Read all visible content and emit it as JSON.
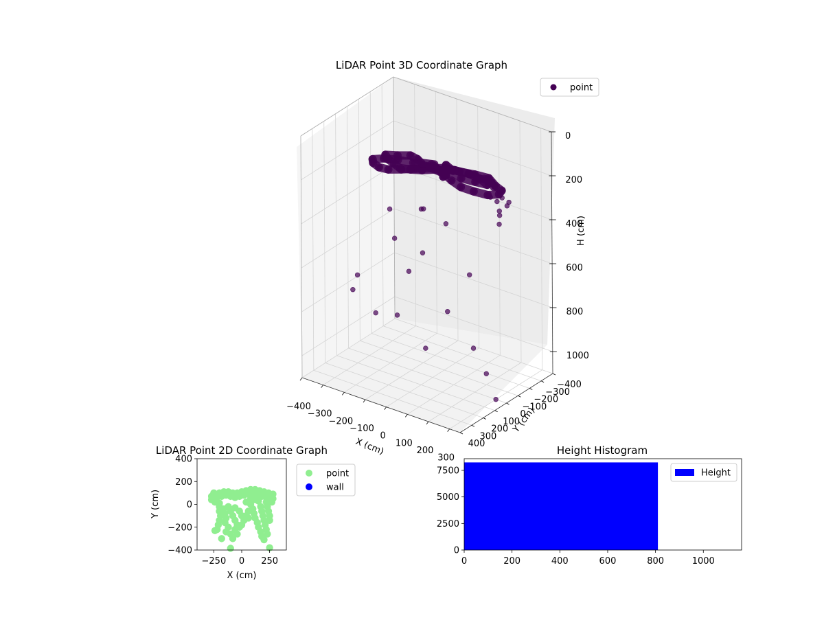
{
  "chart_data": [
    {
      "id": "lidar-3d",
      "type": "scatter",
      "title": "LiDAR Point 3D Coordinate Graph",
      "xlabel": "X (cm)",
      "ylabel": "Y (cm)",
      "zlabel": "H (cm)",
      "xlim": [
        -400,
        350
      ],
      "ylim": [
        -400,
        400
      ],
      "zlim": [
        0,
        1100
      ],
      "z_inverted": true,
      "grid": true,
      "x_ticks": [
        -400,
        -300,
        -200,
        -100,
        0,
        100,
        200,
        300
      ],
      "y_ticks": [
        -400,
        -300,
        -200,
        -100,
        0,
        100,
        200,
        300,
        400
      ],
      "z_ticks": [
        0,
        200,
        400,
        600,
        800,
        1000
      ],
      "x_tick_labels": [
        "−400",
        "−300",
        "−200",
        "−100",
        "0",
        "100",
        "200",
        "300"
      ],
      "y_tick_labels": [
        "−400",
        "−300",
        "−200",
        "−100",
        "0",
        "100",
        "200",
        "300",
        "400"
      ],
      "z_tick_labels": [
        "0",
        "200",
        "400",
        "600",
        "800",
        "1000"
      ],
      "legend": {
        "position": "top-right",
        "entries": [
          {
            "label": "point",
            "color": "#440154"
          }
        ]
      },
      "series": [
        {
          "name": "point",
          "color": "#440154",
          "points": [
            {
              "x": 0,
              "y": 0,
              "z": 130
            },
            {
              "x": 50,
              "y": 40,
              "z": 120
            },
            {
              "x": 100,
              "y": 80,
              "z": 110
            },
            {
              "x": 150,
              "y": 100,
              "z": 120
            },
            {
              "x": 200,
              "y": 110,
              "z": 130
            },
            {
              "x": 250,
              "y": 90,
              "z": 140
            },
            {
              "x": 300,
              "y": 60,
              "z": 150
            },
            {
              "x": 320,
              "y": 0,
              "z": 160
            },
            {
              "x": 300,
              "y": -60,
              "z": 170
            },
            {
              "x": 250,
              "y": -100,
              "z": 180
            },
            {
              "x": 200,
              "y": -130,
              "z": 170
            },
            {
              "x": 150,
              "y": -100,
              "z": 160
            },
            {
              "x": 100,
              "y": -60,
              "z": 150
            },
            {
              "x": 50,
              "y": -30,
              "z": 140
            },
            {
              "x": -50,
              "y": 50,
              "z": 150
            },
            {
              "x": -100,
              "y": 80,
              "z": 160
            },
            {
              "x": -150,
              "y": 100,
              "z": 170
            },
            {
              "x": -200,
              "y": 90,
              "z": 180
            },
            {
              "x": -250,
              "y": 50,
              "z": 190
            },
            {
              "x": -280,
              "y": 0,
              "z": 200
            },
            {
              "x": -260,
              "y": -60,
              "z": 210
            },
            {
              "x": -220,
              "y": -110,
              "z": 220
            },
            {
              "x": -170,
              "y": -150,
              "z": 230
            },
            {
              "x": -120,
              "y": -180,
              "z": 240
            },
            {
              "x": -60,
              "y": -190,
              "z": 250
            },
            {
              "x": -20,
              "y": -160,
              "z": 240
            },
            {
              "x": 0,
              "y": -100,
              "z": 220
            },
            {
              "x": 80,
              "y": 20,
              "z": 100
            },
            {
              "x": 130,
              "y": 50,
              "z": 100
            },
            {
              "x": 180,
              "y": 70,
              "z": 110
            },
            {
              "x": 230,
              "y": 40,
              "z": 120
            },
            {
              "x": 270,
              "y": 10,
              "z": 130
            },
            {
              "x": 210,
              "y": -40,
              "z": 140
            },
            {
              "x": 160,
              "y": -30,
              "z": 130
            },
            {
              "x": 110,
              "y": 0,
              "z": 120
            },
            {
              "x": 60,
              "y": 70,
              "z": 110
            },
            {
              "x": 10,
              "y": 100,
              "z": 120
            },
            {
              "x": -40,
              "y": 110,
              "z": 130
            },
            {
              "x": -90,
              "y": 110,
              "z": 140
            },
            {
              "x": -140,
              "y": 70,
              "z": 150
            },
            {
              "x": -190,
              "y": 30,
              "z": 160
            },
            {
              "x": -230,
              "y": -20,
              "z": 170
            },
            {
              "x": -200,
              "y": -70,
              "z": 180
            },
            {
              "x": -150,
              "y": -90,
              "z": 170
            },
            {
              "x": -100,
              "y": -60,
              "z": 160
            },
            {
              "x": -60,
              "y": -20,
              "z": 150
            },
            {
              "x": 30,
              "y": 30,
              "z": 110
            },
            {
              "x": 280,
              "y": -30,
              "z": 150
            },
            {
              "x": 240,
              "y": -80,
              "z": 160
            },
            {
              "x": 190,
              "y": -110,
              "z": 170
            },
            {
              "x": 200,
              "y": -200,
              "z": 300
            },
            {
              "x": 200,
              "y": -220,
              "z": 350
            },
            {
              "x": 210,
              "y": -200,
              "z": 400
            },
            {
              "x": 220,
              "y": -250,
              "z": 330
            },
            {
              "x": 180,
              "y": -180,
              "z": 280
            },
            {
              "x": 240,
              "y": -230,
              "z": 300
            },
            {
              "x": 190,
              "y": -240,
              "z": 380
            },
            {
              "x": 230,
              "y": -190,
              "z": 270
            },
            {
              "x": -200,
              "y": 0,
              "z": 400
            },
            {
              "x": -150,
              "y": 50,
              "z": 500
            },
            {
              "x": -100,
              "y": -100,
              "z": 600
            },
            {
              "x": -300,
              "y": 100,
              "z": 700
            },
            {
              "x": -350,
              "y": 50,
              "z": 800
            },
            {
              "x": 100,
              "y": 50,
              "z": 750
            },
            {
              "x": 150,
              "y": -50,
              "z": 600
            },
            {
              "x": 50,
              "y": 150,
              "z": 900
            },
            {
              "x": -250,
              "y": -150,
              "z": 950
            },
            {
              "x": 0,
              "y": 200,
              "z": 550
            },
            {
              "x": -380,
              "y": -200,
              "z": 1000
            },
            {
              "x": 250,
              "y": 100,
              "z": 850
            },
            {
              "x": 200,
              "y": -100,
              "z": 1050
            },
            {
              "x": 300,
              "y": 0,
              "z": 1100
            },
            {
              "x": -50,
              "y": 0,
              "z": 350
            },
            {
              "x": 150,
              "y": 150,
              "z": 300
            },
            {
              "x": -150,
              "y": -200,
              "z": 450
            }
          ]
        }
      ]
    },
    {
      "id": "lidar-2d",
      "type": "scatter",
      "title": "LiDAR Point 2D Coordinate Graph",
      "xlabel": "X (cm)",
      "ylabel": "Y (cm)",
      "xlim": [
        -400,
        400
      ],
      "ylim": [
        -400,
        400
      ],
      "x_ticks": [
        -250,
        0,
        250
      ],
      "y_ticks": [
        -400,
        -200,
        0,
        200,
        400
      ],
      "x_tick_labels": [
        "−250",
        "0",
        "250"
      ],
      "y_tick_labels": [
        "−400",
        "−200",
        "0",
        "200",
        "400"
      ],
      "legend": {
        "position": "outside-right",
        "entries": [
          {
            "label": "point",
            "color": "#90ee90"
          },
          {
            "label": "wall",
            "color": "#0000ff"
          }
        ]
      },
      "series": [
        {
          "name": "point",
          "color": "#90ee90",
          "points": [
            {
              "x": -270,
              "y": 70
            },
            {
              "x": -240,
              "y": 90
            },
            {
              "x": -200,
              "y": 100
            },
            {
              "x": -160,
              "y": 110
            },
            {
              "x": -120,
              "y": 110
            },
            {
              "x": -80,
              "y": 100
            },
            {
              "x": -40,
              "y": 100
            },
            {
              "x": 0,
              "y": 110
            },
            {
              "x": 40,
              "y": 120
            },
            {
              "x": 80,
              "y": 130
            },
            {
              "x": 120,
              "y": 130
            },
            {
              "x": 160,
              "y": 120
            },
            {
              "x": 200,
              "y": 110
            },
            {
              "x": 240,
              "y": 100
            },
            {
              "x": 270,
              "y": 80
            },
            {
              "x": 280,
              "y": 50
            },
            {
              "x": 270,
              "y": 20
            },
            {
              "x": -270,
              "y": 40
            },
            {
              "x": -240,
              "y": 20
            },
            {
              "x": -200,
              "y": 10
            },
            {
              "x": -220,
              "y": 60
            },
            {
              "x": -180,
              "y": 70
            },
            {
              "x": -140,
              "y": 80
            },
            {
              "x": -100,
              "y": 70
            },
            {
              "x": -60,
              "y": 60
            },
            {
              "x": -20,
              "y": 70
            },
            {
              "x": 20,
              "y": 80
            },
            {
              "x": 60,
              "y": 90
            },
            {
              "x": 100,
              "y": 90
            },
            {
              "x": 140,
              "y": 80
            },
            {
              "x": 180,
              "y": 70
            },
            {
              "x": 220,
              "y": 60
            },
            {
              "x": 250,
              "y": 40
            },
            {
              "x": -200,
              "y": -20
            },
            {
              "x": -200,
              "y": -60
            },
            {
              "x": -190,
              "y": -100
            },
            {
              "x": -200,
              "y": -140
            },
            {
              "x": -210,
              "y": -180
            },
            {
              "x": -220,
              "y": -220
            },
            {
              "x": -160,
              "y": -40
            },
            {
              "x": -150,
              "y": -80
            },
            {
              "x": -140,
              "y": -120
            },
            {
              "x": -150,
              "y": -160
            },
            {
              "x": -120,
              "y": -200
            },
            {
              "x": -140,
              "y": -240
            },
            {
              "x": -100,
              "y": -260
            },
            {
              "x": -80,
              "y": -300
            },
            {
              "x": -120,
              "y": -20
            },
            {
              "x": -100,
              "y": -60
            },
            {
              "x": -80,
              "y": -100
            },
            {
              "x": -60,
              "y": -140
            },
            {
              "x": -40,
              "y": -180
            },
            {
              "x": -60,
              "y": -220
            },
            {
              "x": -40,
              "y": -260
            },
            {
              "x": -60,
              "y": -30
            },
            {
              "x": -20,
              "y": -60
            },
            {
              "x": 0,
              "y": -100
            },
            {
              "x": 20,
              "y": -140
            },
            {
              "x": 0,
              "y": -180
            },
            {
              "x": -20,
              "y": -200
            },
            {
              "x": 40,
              "y": 20
            },
            {
              "x": 80,
              "y": 0
            },
            {
              "x": 100,
              "y": -40
            },
            {
              "x": 110,
              "y": -80
            },
            {
              "x": 120,
              "y": -120
            },
            {
              "x": 140,
              "y": -160
            },
            {
              "x": 150,
              "y": -200
            },
            {
              "x": 170,
              "y": -240
            },
            {
              "x": 180,
              "y": -280
            },
            {
              "x": 200,
              "y": -310
            },
            {
              "x": 150,
              "y": 30
            },
            {
              "x": 170,
              "y": -20
            },
            {
              "x": 180,
              "y": -60
            },
            {
              "x": 190,
              "y": -100
            },
            {
              "x": 200,
              "y": -140
            },
            {
              "x": 210,
              "y": -180
            },
            {
              "x": 220,
              "y": -220
            },
            {
              "x": 230,
              "y": -260
            },
            {
              "x": 220,
              "y": 20
            },
            {
              "x": 230,
              "y": -20
            },
            {
              "x": 240,
              "y": -60
            },
            {
              "x": 250,
              "y": -100
            },
            {
              "x": 250,
              "y": -140
            },
            {
              "x": 60,
              "y": -60
            },
            {
              "x": 40,
              "y": -100
            },
            {
              "x": 80,
              "y": 50
            },
            {
              "x": 120,
              "y": 40
            },
            {
              "x": -180,
              "y": -300
            },
            {
              "x": -100,
              "y": -385
            },
            {
              "x": 250,
              "y": -380
            },
            {
              "x": 280,
              "y": 90
            },
            {
              "x": -250,
              "y": 100
            },
            {
              "x": 60,
              "y": -120
            },
            {
              "x": -240,
              "y": -230
            }
          ]
        },
        {
          "name": "wall",
          "color": "#0000ff",
          "points": []
        }
      ]
    },
    {
      "id": "height-hist",
      "type": "bar",
      "title": "Height Histogram",
      "xlim": [
        0,
        1160
      ],
      "ylim": [
        0,
        8600
      ],
      "x_ticks": [
        0,
        200,
        400,
        600,
        800,
        1000
      ],
      "y_ticks": [
        0,
        2500,
        5000,
        7500
      ],
      "x_tick_labels": [
        "0",
        "200",
        "400",
        "600",
        "800",
        "1000"
      ],
      "y_tick_labels": [
        "0",
        "2500",
        "5000",
        "7500"
      ],
      "legend": {
        "position": "top-right",
        "entries": [
          {
            "label": "Height",
            "color": "#0000ff"
          }
        ]
      },
      "series": [
        {
          "name": "Height",
          "color": "#0000ff",
          "bins": [
            {
              "start": 0,
              "end": 810,
              "count": 8250
            }
          ]
        }
      ]
    }
  ]
}
